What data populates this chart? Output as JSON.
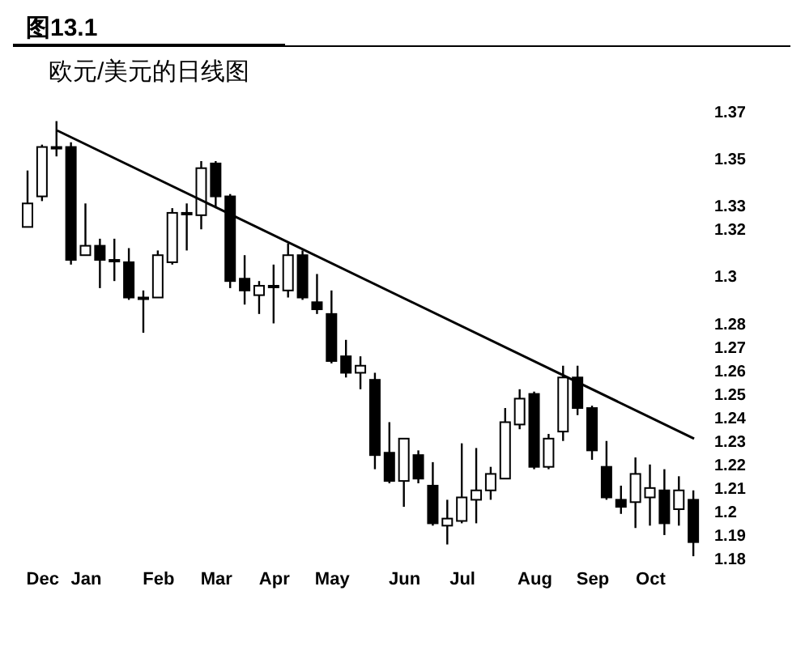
{
  "chart_data": {
    "type": "candlestick",
    "title": "图13.1",
    "subtitle": "欧元/美元的日线图",
    "categories": [
      null,
      "Dec",
      null,
      null,
      "Jan",
      null,
      null,
      null,
      null,
      "Feb",
      null,
      null,
      null,
      "Mar",
      null,
      null,
      null,
      "Apr",
      null,
      null,
      null,
      "May",
      null,
      null,
      null,
      null,
      "Jun",
      null,
      null,
      null,
      "Jul",
      null,
      null,
      null,
      null,
      "Aug",
      null,
      null,
      null,
      "Sep",
      null,
      null,
      null,
      "Oct",
      null,
      null,
      null
    ],
    "ohlc": [
      [
        1.321,
        1.345,
        1.321,
        1.331
      ],
      [
        1.334,
        1.356,
        1.332,
        1.355
      ],
      [
        1.355,
        1.366,
        1.351,
        1.355
      ],
      [
        1.355,
        1.357,
        1.305,
        1.307
      ],
      [
        1.309,
        1.331,
        1.309,
        1.313
      ],
      [
        1.313,
        1.316,
        1.295,
        1.307
      ],
      [
        1.307,
        1.316,
        1.298,
        1.307
      ],
      [
        1.306,
        1.312,
        1.29,
        1.291
      ],
      [
        1.291,
        1.294,
        1.276,
        1.291
      ],
      [
        1.291,
        1.311,
        1.291,
        1.309
      ],
      [
        1.306,
        1.329,
        1.305,
        1.327
      ],
      [
        1.327,
        1.331,
        1.311,
        1.327
      ],
      [
        1.326,
        1.349,
        1.32,
        1.346
      ],
      [
        1.348,
        1.349,
        1.329,
        1.334
      ],
      [
        1.334,
        1.335,
        1.295,
        1.298
      ],
      [
        1.299,
        1.309,
        1.288,
        1.294
      ],
      [
        1.292,
        1.298,
        1.284,
        1.296
      ],
      [
        1.296,
        1.305,
        1.28,
        1.296
      ],
      [
        1.294,
        1.314,
        1.291,
        1.309
      ],
      [
        1.309,
        1.311,
        1.29,
        1.291
      ],
      [
        1.289,
        1.301,
        1.284,
        1.286
      ],
      [
        1.284,
        1.294,
        1.263,
        1.264
      ],
      [
        1.266,
        1.273,
        1.257,
        1.259
      ],
      [
        1.259,
        1.266,
        1.252,
        1.262
      ],
      [
        1.256,
        1.259,
        1.218,
        1.224
      ],
      [
        1.225,
        1.238,
        1.212,
        1.213
      ],
      [
        1.213,
        1.231,
        1.202,
        1.231
      ],
      [
        1.224,
        1.226,
        1.212,
        1.214
      ],
      [
        1.211,
        1.221,
        1.194,
        1.195
      ],
      [
        1.194,
        1.205,
        1.186,
        1.197
      ],
      [
        1.196,
        1.229,
        1.195,
        1.206
      ],
      [
        1.205,
        1.227,
        1.195,
        1.209
      ],
      [
        1.209,
        1.219,
        1.205,
        1.216
      ],
      [
        1.214,
        1.244,
        1.214,
        1.238
      ],
      [
        1.237,
        1.252,
        1.235,
        1.248
      ],
      [
        1.25,
        1.251,
        1.218,
        1.219
      ],
      [
        1.219,
        1.233,
        1.218,
        1.231
      ],
      [
        1.234,
        1.262,
        1.23,
        1.257
      ],
      [
        1.257,
        1.262,
        1.241,
        1.244
      ],
      [
        1.244,
        1.245,
        1.222,
        1.226
      ],
      [
        1.219,
        1.23,
        1.205,
        1.206
      ],
      [
        1.205,
        1.211,
        1.199,
        1.202
      ],
      [
        1.204,
        1.223,
        1.193,
        1.216
      ],
      [
        1.206,
        1.22,
        1.194,
        1.21
      ],
      [
        1.209,
        1.218,
        1.19,
        1.195
      ],
      [
        1.201,
        1.215,
        1.194,
        1.209
      ],
      [
        1.205,
        1.209,
        1.181,
        1.187
      ]
    ],
    "series": [
      {
        "type": "line",
        "color": "#000000",
        "values": [
          null,
          null,
          1.362,
          null,
          null,
          null,
          null,
          null,
          null,
          null,
          null,
          null,
          null,
          null,
          null,
          null,
          null,
          null,
          null,
          null,
          null,
          null,
          null,
          null,
          null,
          null,
          null,
          null,
          null,
          null,
          null,
          null,
          null,
          null,
          null,
          null,
          null,
          null,
          null,
          null,
          null,
          null,
          null,
          null,
          null,
          null,
          1.231
        ]
      }
    ],
    "ylim": [
      1.18,
      1.37
    ],
    "yticks": [
      1.18,
      1.19,
      1.2,
      1.21,
      1.22,
      1.23,
      1.24,
      1.25,
      1.26,
      1.27,
      1.28,
      1.3,
      1.32,
      1.33,
      1.35,
      1.37
    ],
    "grid": false
  }
}
